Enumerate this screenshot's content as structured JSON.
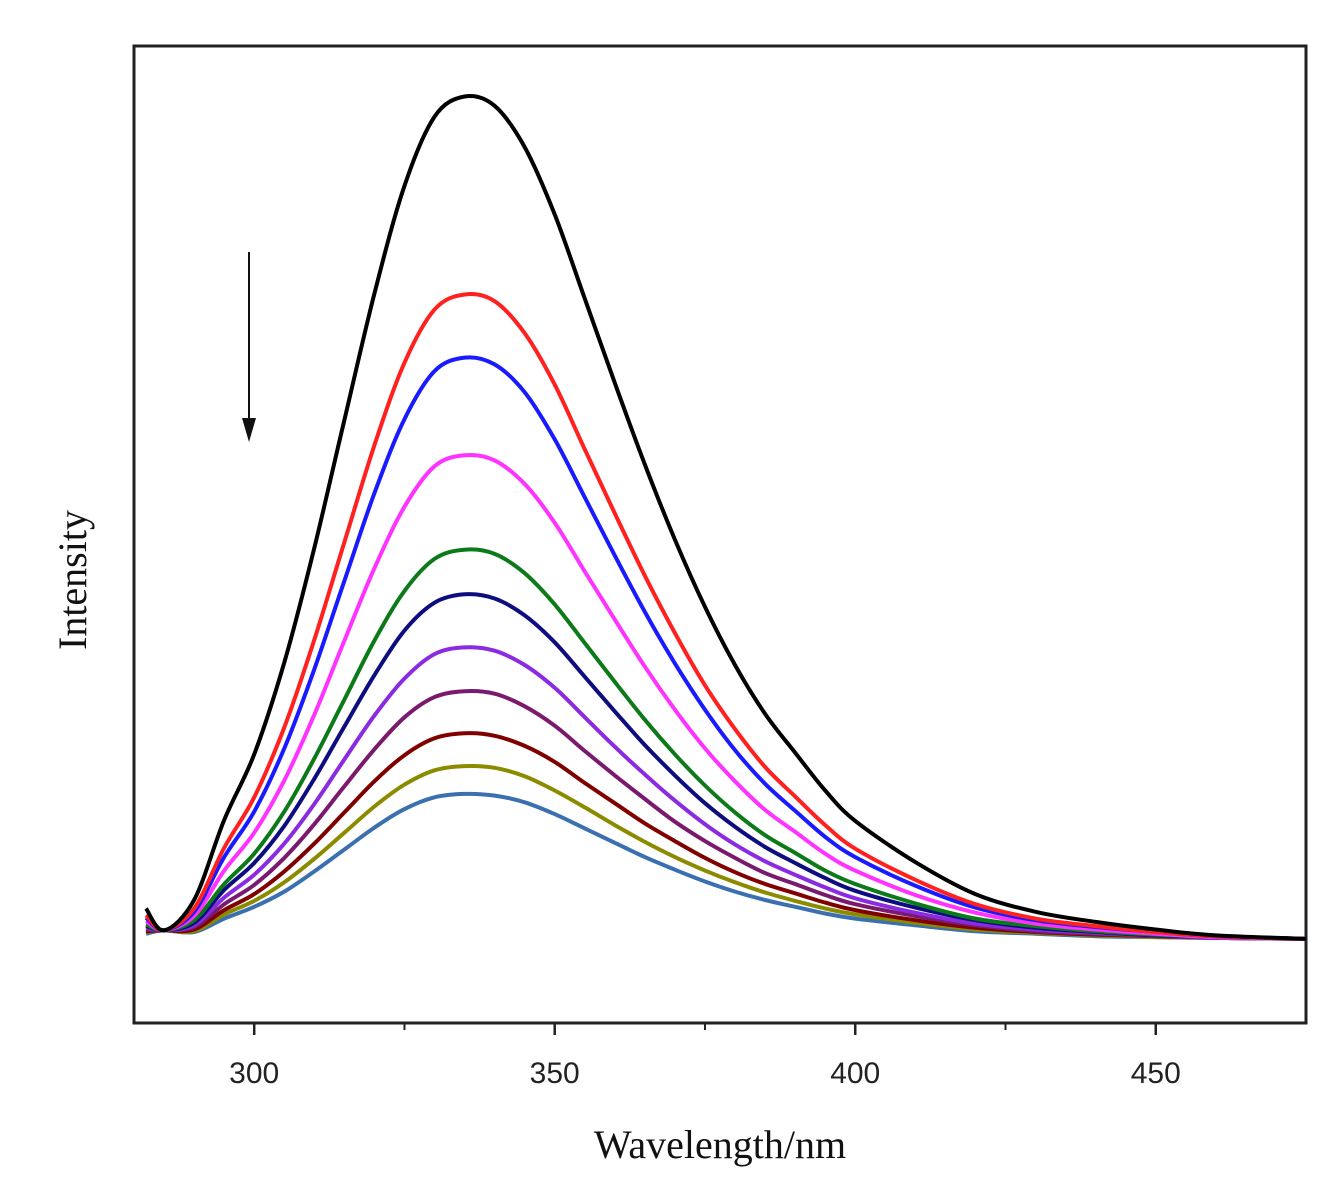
{
  "chart_data": {
    "type": "line",
    "title": "",
    "xlabel": "Wavelength/nm",
    "ylabel": "Intensity",
    "xlim": [
      280,
      475
    ],
    "ylim": [
      -0.1,
      1.06
    ],
    "x_ticks": [
      300,
      350,
      400,
      450
    ],
    "x_tick_labels": [
      "300",
      "350",
      "400",
      "450"
    ],
    "x_minor_ticks": [
      325,
      375,
      425
    ],
    "y_ticks_labeled": false,
    "grid": false,
    "legend": "none",
    "annotation": "arrow pointing down (intensity decreases)",
    "x": [
      282,
      285,
      290,
      295,
      300,
      305,
      310,
      315,
      320,
      325,
      330,
      335,
      340,
      345,
      350,
      355,
      360,
      365,
      370,
      375,
      380,
      385,
      390,
      395,
      400,
      410,
      420,
      430,
      440,
      450,
      460,
      475
    ],
    "series": [
      {
        "color": "#000000",
        "peak": 1.0,
        "values": [
          0.036,
          0.01,
          0.046,
          0.141,
          0.219,
          0.328,
          0.464,
          0.616,
          0.766,
          0.894,
          0.976,
          1.0,
          0.989,
          0.94,
          0.86,
          0.76,
          0.66,
          0.563,
          0.474,
          0.394,
          0.325,
          0.267,
          0.221,
          0.176,
          0.14,
          0.091,
          0.053,
          0.032,
          0.02,
          0.011,
          0.004,
          0.0
        ]
      },
      {
        "color": "#ff2020",
        "peak": 0.765,
        "values": [
          0.028,
          0.01,
          0.036,
          0.108,
          0.168,
          0.251,
          0.355,
          0.471,
          0.586,
          0.684,
          0.747,
          0.765,
          0.757,
          0.719,
          0.658,
          0.581,
          0.505,
          0.431,
          0.363,
          0.301,
          0.249,
          0.204,
          0.169,
          0.135,
          0.107,
          0.07,
          0.041,
          0.024,
          0.015,
          0.008,
          0.003,
          0.0
        ]
      },
      {
        "color": "#1a1aff",
        "peak": 0.69,
        "values": [
          0.025,
          0.01,
          0.032,
          0.097,
          0.151,
          0.226,
          0.32,
          0.425,
          0.529,
          0.617,
          0.674,
          0.69,
          0.682,
          0.649,
          0.593,
          0.524,
          0.455,
          0.388,
          0.327,
          0.272,
          0.224,
          0.184,
          0.152,
          0.121,
          0.097,
          0.063,
          0.037,
          0.022,
          0.014,
          0.008,
          0.003,
          0.0
        ]
      },
      {
        "color": "#ff33ff",
        "peak": 0.574,
        "values": [
          0.021,
          0.01,
          0.027,
          0.081,
          0.126,
          0.188,
          0.266,
          0.354,
          0.44,
          0.513,
          0.561,
          0.574,
          0.568,
          0.54,
          0.494,
          0.436,
          0.379,
          0.323,
          0.272,
          0.226,
          0.187,
          0.153,
          0.127,
          0.101,
          0.081,
          0.052,
          0.031,
          0.018,
          0.011,
          0.006,
          0.002,
          0.0
        ]
      },
      {
        "color": "#0d7a1a",
        "peak": 0.462,
        "values": [
          0.017,
          0.01,
          0.022,
          0.065,
          0.101,
          0.151,
          0.214,
          0.284,
          0.354,
          0.413,
          0.451,
          0.462,
          0.457,
          0.434,
          0.397,
          0.351,
          0.305,
          0.26,
          0.219,
          0.182,
          0.15,
          0.123,
          0.102,
          0.081,
          0.065,
          0.042,
          0.024,
          0.015,
          0.009,
          0.005,
          0.002,
          0.0
        ]
      },
      {
        "color": "#0d0d80",
        "peak": 0.409,
        "values": [
          0.015,
          0.01,
          0.019,
          0.058,
          0.09,
          0.134,
          0.19,
          0.252,
          0.313,
          0.366,
          0.399,
          0.409,
          0.404,
          0.384,
          0.352,
          0.311,
          0.27,
          0.23,
          0.194,
          0.161,
          0.133,
          0.109,
          0.09,
          0.072,
          0.057,
          0.037,
          0.022,
          0.013,
          0.008,
          0.004,
          0.002,
          0.0
        ]
      },
      {
        "color": "#8a2be2",
        "peak": 0.346,
        "values": [
          0.013,
          0.01,
          0.016,
          0.049,
          0.076,
          0.113,
          0.16,
          0.213,
          0.265,
          0.309,
          0.338,
          0.346,
          0.342,
          0.325,
          0.298,
          0.263,
          0.228,
          0.195,
          0.164,
          0.136,
          0.112,
          0.092,
          0.076,
          0.061,
          0.048,
          0.031,
          0.018,
          0.011,
          0.007,
          0.004,
          0.001,
          0.0
        ]
      },
      {
        "color": "#7a1a6e",
        "peak": 0.294,
        "values": [
          0.011,
          0.01,
          0.014,
          0.041,
          0.064,
          0.096,
          0.136,
          0.181,
          0.225,
          0.263,
          0.287,
          0.294,
          0.291,
          0.276,
          0.253,
          0.223,
          0.194,
          0.166,
          0.139,
          0.116,
          0.096,
          0.078,
          0.065,
          0.052,
          0.041,
          0.027,
          0.016,
          0.009,
          0.006,
          0.003,
          0.001,
          0.0
        ]
      },
      {
        "color": "#800000",
        "peak": 0.244,
        "values": [
          0.009,
          0.01,
          0.011,
          0.034,
          0.053,
          0.08,
          0.113,
          0.15,
          0.187,
          0.218,
          0.238,
          0.244,
          0.241,
          0.229,
          0.21,
          0.185,
          0.161,
          0.137,
          0.116,
          0.096,
          0.079,
          0.065,
          0.054,
          0.043,
          0.034,
          0.022,
          0.013,
          0.008,
          0.005,
          0.003,
          0.001,
          0.0
        ]
      },
      {
        "color": "#8b8b00",
        "peak": 0.205,
        "values": [
          0.008,
          0.01,
          0.009,
          0.029,
          0.045,
          0.067,
          0.095,
          0.126,
          0.157,
          0.183,
          0.2,
          0.205,
          0.203,
          0.193,
          0.176,
          0.156,
          0.135,
          0.115,
          0.097,
          0.081,
          0.067,
          0.055,
          0.045,
          0.036,
          0.029,
          0.019,
          0.011,
          0.007,
          0.004,
          0.002,
          0.001,
          0.0
        ]
      },
      {
        "color": "#3a6fb0",
        "peak": 0.172,
        "values": [
          0.006,
          0.01,
          0.008,
          0.024,
          0.038,
          0.056,
          0.08,
          0.106,
          0.132,
          0.154,
          0.168,
          0.172,
          0.17,
          0.162,
          0.148,
          0.131,
          0.114,
          0.097,
          0.082,
          0.068,
          0.056,
          0.046,
          0.038,
          0.03,
          0.024,
          0.016,
          0.009,
          0.006,
          0.003,
          0.002,
          0.001,
          0.0
        ]
      }
    ]
  }
}
